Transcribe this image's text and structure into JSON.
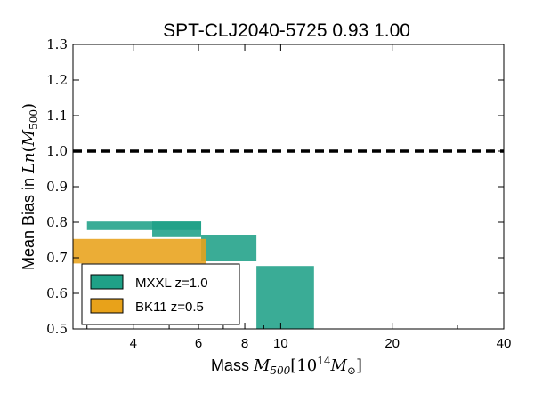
{
  "chart_data": {
    "type": "bar",
    "title": "SPT-CLJ2040-5725 0.93 1.00",
    "xlabel": {
      "prefix": "Mass ",
      "math": "M",
      "sub": "500",
      "rest": "[10",
      "sup": "14",
      "rest2": "M",
      "sun": "⊙",
      "close": "]"
    },
    "ylabel": {
      "prefix": "Mean Bias in ",
      "math": "Ln",
      "open": "(",
      "m": "M",
      "sub": "500",
      "close": ")"
    },
    "xscale": "log",
    "xlim": [
      2.75,
      40
    ],
    "ylim": [
      0.5,
      1.3
    ],
    "x_ticks": [
      {
        "value": 4,
        "label": "4"
      },
      {
        "value": 6,
        "label": "6"
      },
      {
        "value": 8,
        "label": "8"
      },
      {
        "value": 10,
        "label": "10"
      },
      {
        "value": 20,
        "label": "20"
      },
      {
        "value": 40,
        "label": "40"
      }
    ],
    "y_ticks": [
      {
        "value": 0.5,
        "label": "0.5"
      },
      {
        "value": 0.6,
        "label": "0.6"
      },
      {
        "value": 0.7,
        "label": "0.7"
      },
      {
        "value": 0.8,
        "label": "0.8"
      },
      {
        "value": 0.9,
        "label": "0.9"
      },
      {
        "value": 1.0,
        "label": "1.0"
      },
      {
        "value": 1.1,
        "label": "1.1"
      },
      {
        "value": 1.2,
        "label": "1.2"
      },
      {
        "value": 1.3,
        "label": "1.3"
      }
    ],
    "reference_line": {
      "y": 1.0,
      "style": "dashed",
      "color": "#000000"
    },
    "series": [
      {
        "name": "MXXL z=1.0",
        "color": "#1fa187",
        "boxes": [
          {
            "x0": 3.0,
            "x1": 6.1,
            "y0": 0.778,
            "y1": 0.802
          },
          {
            "x0": 4.5,
            "x1": 6.1,
            "y0": 0.758,
            "y1": 0.802
          },
          {
            "x0": 6.1,
            "x1": 8.6,
            "y0": 0.69,
            "y1": 0.765
          },
          {
            "x0": 8.6,
            "x1": 12.3,
            "y0": 0.5,
            "y1": 0.677
          }
        ]
      },
      {
        "name": "BK11 z=0.5",
        "color": "#e8a21a",
        "boxes": [
          {
            "x0": 2.75,
            "x1": 6.3,
            "y0": 0.684,
            "y1": 0.753
          }
        ]
      }
    ],
    "legend_position": "bottom-left"
  }
}
